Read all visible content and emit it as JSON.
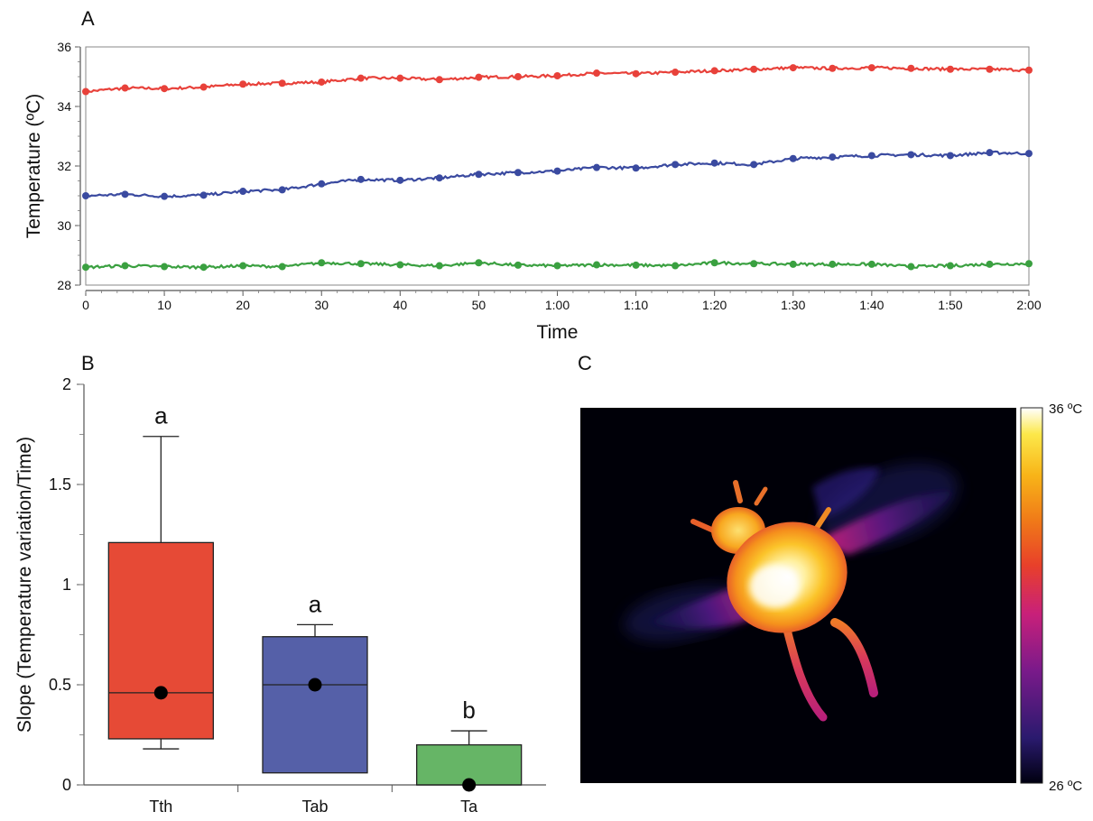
{
  "panels": {
    "a_label": "A",
    "b_label": "B",
    "c_label": "C"
  },
  "chart_data": [
    {
      "type": "line",
      "title": "",
      "xlabel": "Time",
      "ylabel": "Temperature (ºC)",
      "xlim": [
        0,
        120
      ],
      "ylim": [
        28,
        36
      ],
      "x_ticks": [
        {
          "value": 0,
          "label": "0"
        },
        {
          "value": 10,
          "label": "10"
        },
        {
          "value": 20,
          "label": "20"
        },
        {
          "value": 30,
          "label": "30"
        },
        {
          "value": 40,
          "label": "40"
        },
        {
          "value": 50,
          "label": "50"
        },
        {
          "value": 60,
          "label": "1:00"
        },
        {
          "value": 70,
          "label": "1:10"
        },
        {
          "value": 80,
          "label": "1:20"
        },
        {
          "value": 90,
          "label": "1:30"
        },
        {
          "value": 100,
          "label": "1:40"
        },
        {
          "value": 110,
          "label": "1:50"
        },
        {
          "value": 120,
          "label": "2:00"
        }
      ],
      "y_ticks": [
        {
          "value": 28,
          "label": "28"
        },
        {
          "value": 30,
          "label": "30"
        },
        {
          "value": 32,
          "label": "32"
        },
        {
          "value": 34,
          "label": "34"
        },
        {
          "value": 36,
          "label": "36"
        }
      ],
      "grid": false,
      "series": [
        {
          "color": "#e8413a",
          "x": [
            0,
            5,
            10,
            15,
            20,
            25,
            30,
            35,
            40,
            45,
            50,
            55,
            60,
            65,
            70,
            75,
            80,
            85,
            90,
            95,
            100,
            105,
            110,
            115,
            120
          ],
          "y": [
            34.5,
            34.62,
            34.6,
            34.65,
            34.75,
            34.78,
            34.82,
            34.95,
            34.95,
            34.9,
            34.98,
            35.0,
            35.03,
            35.12,
            35.1,
            35.15,
            35.2,
            35.25,
            35.3,
            35.28,
            35.3,
            35.28,
            35.25,
            35.25,
            35.22
          ]
        },
        {
          "color": "#3a4aa0",
          "x": [
            0,
            5,
            10,
            15,
            20,
            25,
            30,
            35,
            40,
            45,
            50,
            55,
            60,
            65,
            70,
            75,
            80,
            85,
            90,
            95,
            100,
            105,
            110,
            115,
            120
          ],
          "y": [
            31.0,
            31.05,
            30.98,
            31.02,
            31.15,
            31.2,
            31.4,
            31.55,
            31.52,
            31.6,
            31.72,
            31.78,
            31.83,
            31.95,
            31.93,
            32.05,
            32.1,
            32.05,
            32.25,
            32.3,
            32.35,
            32.38,
            32.35,
            32.45,
            32.42
          ]
        },
        {
          "color": "#3aa040",
          "x": [
            0,
            5,
            10,
            15,
            20,
            25,
            30,
            35,
            40,
            45,
            50,
            55,
            60,
            65,
            70,
            75,
            80,
            85,
            90,
            95,
            100,
            105,
            110,
            115,
            120
          ],
          "y": [
            28.6,
            28.65,
            28.62,
            28.6,
            28.65,
            28.62,
            28.75,
            28.72,
            28.68,
            28.65,
            28.75,
            28.67,
            28.65,
            28.68,
            28.67,
            28.65,
            28.75,
            28.72,
            28.7,
            28.7,
            28.7,
            28.62,
            28.65,
            28.7,
            28.72
          ]
        }
      ]
    },
    {
      "type": "box",
      "title": "",
      "xlabel": "",
      "ylabel": "Slope (Temperature variation/Time)",
      "ylim": [
        0,
        2
      ],
      "y_ticks": [
        {
          "value": 0,
          "label": "0"
        },
        {
          "value": 0.5,
          "label": "0.5"
        },
        {
          "value": 1,
          "label": "1"
        },
        {
          "value": 1.5,
          "label": "1.5"
        },
        {
          "value": 2,
          "label": "2"
        }
      ],
      "grid": false,
      "groups": [
        {
          "category": "Tth",
          "color": "#e64a36",
          "whisker_low": 0.18,
          "q1": 0.23,
          "median": 0.46,
          "q3": 1.21,
          "whisker_high": 1.74,
          "mean": 0.46,
          "letter": "a"
        },
        {
          "category": "Tab",
          "color": "#5560a8",
          "whisker_low": 0.06,
          "q1": 0.06,
          "median": 0.5,
          "q3": 0.74,
          "whisker_high": 0.8,
          "mean": 0.5,
          "letter": "a"
        },
        {
          "category": "Ta",
          "color": "#66b566",
          "whisker_low": 0.0,
          "q1": 0.0,
          "median": 0.0,
          "q3": 0.2,
          "whisker_high": 0.27,
          "mean": 0.0,
          "letter": "b"
        }
      ]
    }
  ],
  "thermal_image": {
    "colorbar_max_label": "36 ºC",
    "colorbar_min_label": "26 ºC",
    "palette": [
      "#000010",
      "#2a1a6e",
      "#7a1a8a",
      "#c8207a",
      "#e8402a",
      "#f07a18",
      "#f8b418",
      "#fce84a",
      "#ffffff"
    ]
  }
}
